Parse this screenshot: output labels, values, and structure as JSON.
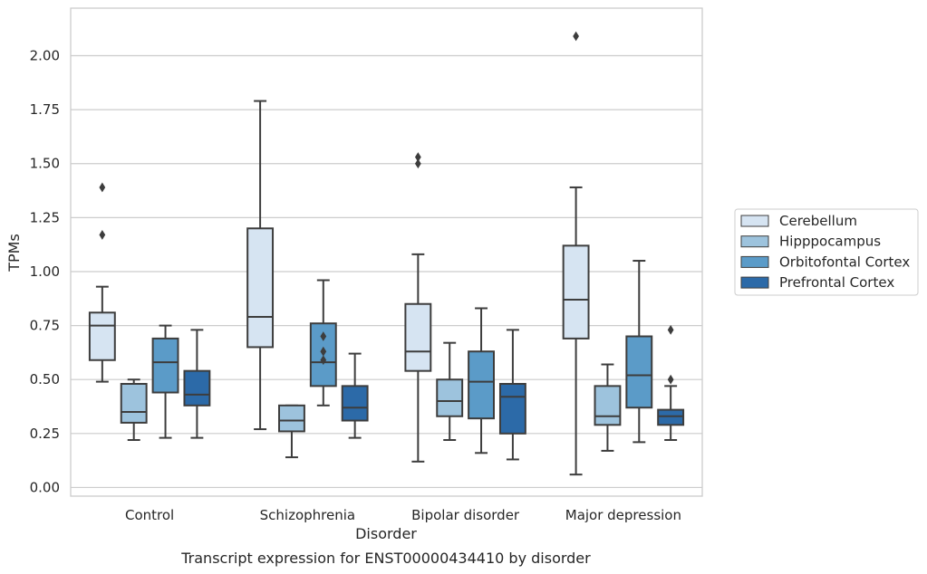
{
  "chart_data": {
    "type": "box",
    "xlabel": "Disorder",
    "ylabel": "TPMs",
    "caption": "Transcript expression for ENST00000434410 by disorder",
    "ylim": [
      -0.04,
      2.22
    ],
    "yticks": [
      "0.00",
      "0.25",
      "0.50",
      "0.75",
      "1.00",
      "1.25",
      "1.50",
      "1.75",
      "2.00"
    ],
    "grid": true,
    "legend_position": "right-center",
    "categories": [
      "Control",
      "Schizophrenia",
      "Bipolar disorder",
      "Major depression"
    ],
    "series": [
      {
        "name": "Cerebellum",
        "color": "#d6e4f2",
        "boxes": [
          {
            "whislo": 0.49,
            "q1": 0.59,
            "med": 0.75,
            "q3": 0.81,
            "whishi": 0.93,
            "fliers": [
              1.17,
              1.39
            ]
          },
          {
            "whislo": 0.27,
            "q1": 0.65,
            "med": 0.79,
            "q3": 1.2,
            "whishi": 1.79,
            "fliers": []
          },
          {
            "whislo": 0.12,
            "q1": 0.54,
            "med": 0.63,
            "q3": 0.85,
            "whishi": 1.08,
            "fliers": [
              1.5,
              1.53
            ]
          },
          {
            "whislo": 0.06,
            "q1": 0.69,
            "med": 0.87,
            "q3": 1.12,
            "whishi": 1.39,
            "fliers": [
              2.09
            ]
          }
        ]
      },
      {
        "name": "Hipppocampus",
        "color": "#9dc3dd",
        "boxes": [
          {
            "whislo": 0.22,
            "q1": 0.3,
            "med": 0.35,
            "q3": 0.48,
            "whishi": 0.5,
            "fliers": []
          },
          {
            "whislo": 0.14,
            "q1": 0.26,
            "med": 0.31,
            "q3": 0.38,
            "whishi": 0.38,
            "fliers": []
          },
          {
            "whislo": 0.22,
            "q1": 0.33,
            "med": 0.4,
            "q3": 0.5,
            "whishi": 0.67,
            "fliers": []
          },
          {
            "whislo": 0.17,
            "q1": 0.29,
            "med": 0.33,
            "q3": 0.47,
            "whishi": 0.57,
            "fliers": []
          }
        ]
      },
      {
        "name": "Orbitofontal Cortex",
        "color": "#5b9bc8",
        "boxes": [
          {
            "whislo": 0.23,
            "q1": 0.44,
            "med": 0.58,
            "q3": 0.69,
            "whishi": 0.75,
            "fliers": []
          },
          {
            "whislo": 0.38,
            "q1": 0.47,
            "med": 0.58,
            "q3": 0.76,
            "whishi": 0.96,
            "fliers": [
              0.59,
              0.63,
              0.7
            ]
          },
          {
            "whislo": 0.16,
            "q1": 0.32,
            "med": 0.49,
            "q3": 0.63,
            "whishi": 0.83,
            "fliers": []
          },
          {
            "whislo": 0.21,
            "q1": 0.37,
            "med": 0.52,
            "q3": 0.7,
            "whishi": 1.05,
            "fliers": []
          }
        ]
      },
      {
        "name": "Prefrontal Cortex",
        "color": "#2c6aa8",
        "boxes": [
          {
            "whislo": 0.23,
            "q1": 0.38,
            "med": 0.43,
            "q3": 0.54,
            "whishi": 0.73,
            "fliers": []
          },
          {
            "whislo": 0.23,
            "q1": 0.31,
            "med": 0.37,
            "q3": 0.47,
            "whishi": 0.62,
            "fliers": []
          },
          {
            "whislo": 0.13,
            "q1": 0.25,
            "med": 0.42,
            "q3": 0.48,
            "whishi": 0.73,
            "fliers": []
          },
          {
            "whislo": 0.22,
            "q1": 0.29,
            "med": 0.33,
            "q3": 0.36,
            "whishi": 0.47,
            "fliers": [
              0.5,
              0.73
            ]
          }
        ]
      }
    ]
  }
}
